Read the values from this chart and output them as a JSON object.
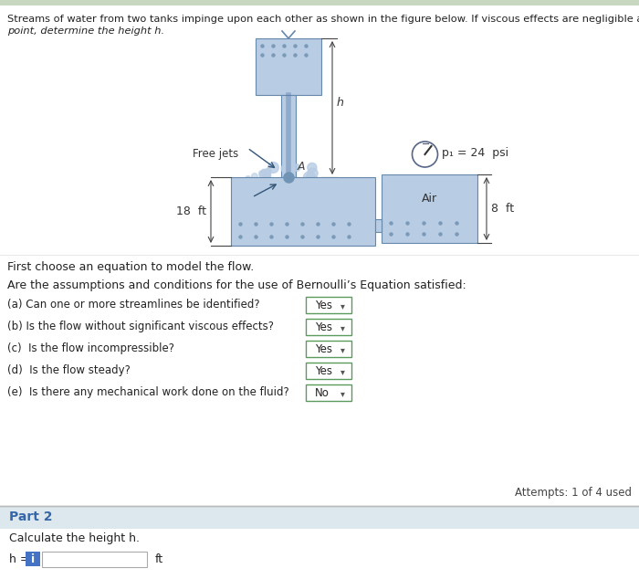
{
  "bg_top": "#e8f0e8",
  "bg_main": "#ffffff",
  "bg_part2_header": "#dde8ee",
  "bg_part2_body": "#f0f0f0",
  "light_blue": "#b8cce4",
  "steel_blue": "#7094b5",
  "mid_blue": "#8ca9c8",
  "dot_blue": "#7a9ab8",
  "header_text_line1": "Streams of water from two tanks impinge upon each other as shown in the figure below. If viscous effects are negligible and point A is a stagnation",
  "header_text_line2": "point, determine the height h.",
  "section1_text": "First choose an equation to model the flow.",
  "section2_text": "Are the assumptions and conditions for the use of Bernoulli’s Equation satisfied:",
  "questions": [
    "(a) Can one or more streamlines be identified?",
    "(b) Is the flow without significant viscous effects?",
    "(c)  Is the flow incompressible?",
    "(d)  Is the flow steady?",
    "(e)  Is there any mechanical work done on the fluid?"
  ],
  "answers": [
    "Yes",
    "Yes",
    "Yes",
    "Yes",
    "No"
  ],
  "attempts_text": "Attempts: 1 of 4 used",
  "part2_label": "Part 2",
  "calc_text": "Calculate the height h.",
  "h_label": "h =",
  "ft_label": "ft",
  "pressure_label": "p₁ = 24  psi",
  "air_label": "Air",
  "free_jets_label": "Free jets",
  "dim_18ft": "18  ft",
  "dim_8ft": "8  ft",
  "dim_h": "h",
  "point_A": "A"
}
